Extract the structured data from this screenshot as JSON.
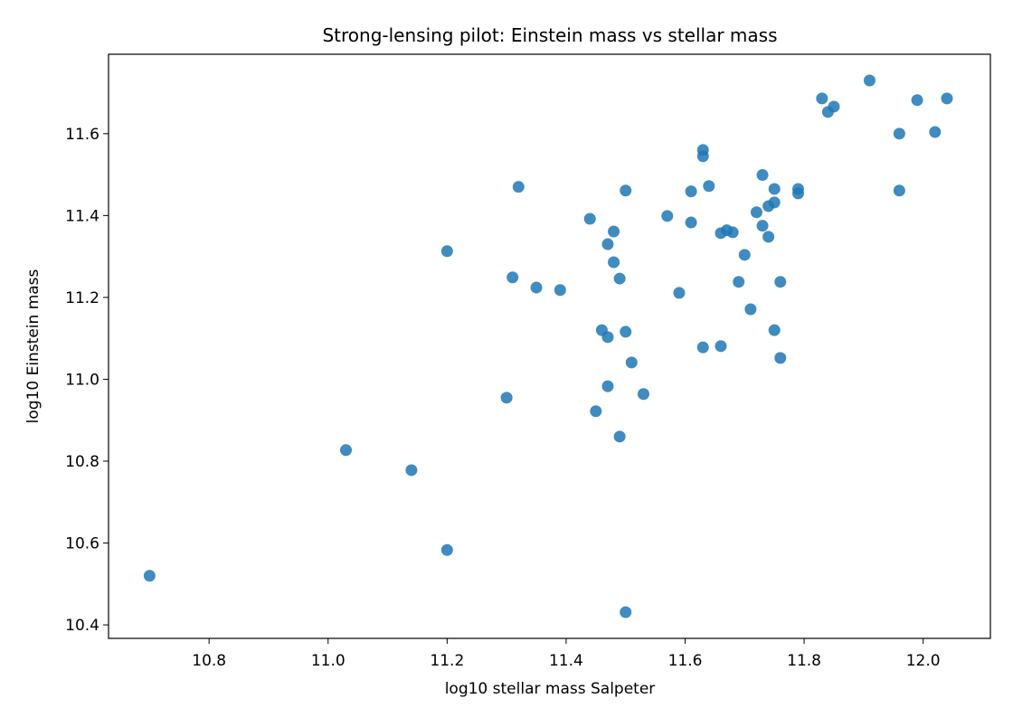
{
  "chart_data": {
    "type": "scatter",
    "title": "Strong-lensing pilot: Einstein mass vs stellar mass",
    "x_label": "log10 stellar mass Salpeter",
    "y_label": "log10 Einstein mass",
    "color": "#1f77b4",
    "xlim": [
      10.631,
      12.113
    ],
    "ylim": [
      10.367,
      11.794
    ],
    "xticks": [
      10.8,
      {
        "value": 11,
        "label": "11.0"
      },
      11.2,
      11.4,
      11.6,
      11.8,
      {
        "value": 12,
        "label": "12.0"
      }
    ],
    "yticks": [
      10.4,
      10.6,
      10.8,
      {
        "value": 11,
        "label": "11.0"
      },
      11.2,
      11.4,
      11.6
    ],
    "x": [
      10.7,
      11.03,
      11.14,
      11.2,
      11.2,
      11.5,
      11.3,
      11.31,
      11.32,
      11.35,
      11.39,
      11.44,
      11.45,
      11.46,
      11.47,
      11.47,
      11.47,
      11.48,
      11.48,
      11.49,
      11.49,
      11.5,
      11.5,
      11.51,
      11.53,
      11.57,
      11.59,
      11.61,
      11.61,
      11.63,
      11.63,
      11.63,
      11.64,
      11.66,
      11.66,
      11.67,
      11.68,
      11.69,
      11.7,
      11.71,
      11.72,
      11.73,
      11.73,
      11.74,
      11.74,
      11.75,
      11.75,
      11.75,
      11.76,
      11.76,
      11.79,
      11.79,
      11.83,
      11.84,
      11.85,
      11.91,
      11.96,
      11.96,
      11.99,
      12.02,
      12.04
    ],
    "values": [
      10.52,
      10.827,
      10.778,
      10.583,
      11.313,
      10.431,
      10.955,
      11.249,
      11.47,
      11.224,
      11.218,
      11.392,
      10.922,
      11.12,
      11.103,
      11.33,
      10.983,
      11.361,
      11.286,
      11.246,
      10.86,
      11.461,
      11.116,
      11.041,
      10.964,
      11.399,
      11.211,
      11.459,
      11.383,
      11.56,
      11.545,
      11.078,
      11.472,
      11.357,
      11.081,
      11.364,
      11.359,
      11.238,
      11.304,
      11.171,
      11.408,
      11.499,
      11.375,
      11.423,
      11.348,
      11.432,
      11.465,
      11.12,
      11.238,
      11.052,
      11.465,
      11.454,
      11.686,
      11.653,
      11.666,
      11.73,
      11.6,
      11.461,
      11.682,
      11.604,
      11.686
    ]
  }
}
